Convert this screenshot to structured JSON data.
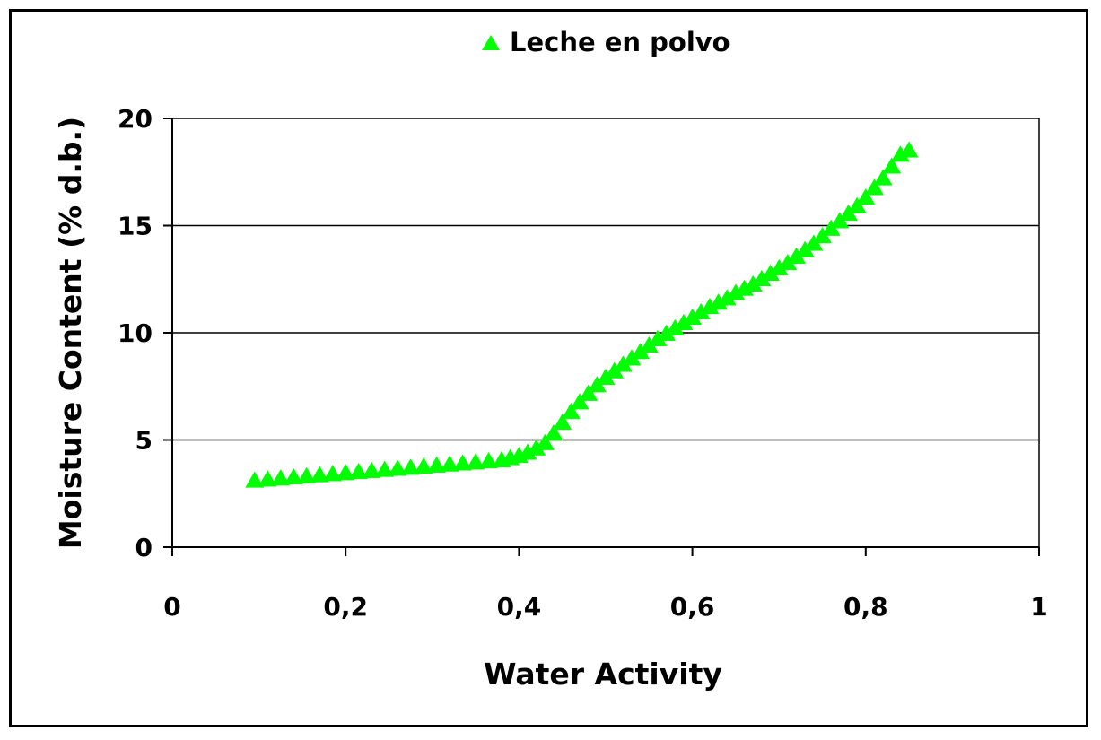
{
  "chart_data": {
    "type": "scatter",
    "xlabel": "Water Activity",
    "ylabel": "Moisture Content (% d.b.)",
    "xlim": [
      0,
      1
    ],
    "ylim": [
      0,
      20
    ],
    "x_ticks": [
      0,
      0.2,
      0.4,
      0.6,
      0.8,
      1
    ],
    "x_tick_labels": [
      "0",
      "0,2",
      "0,4",
      "0,6",
      "0,8",
      "1"
    ],
    "y_ticks": [
      0,
      5,
      10,
      15,
      20
    ],
    "y_tick_labels": [
      "0",
      "5",
      "10",
      "15",
      "20"
    ],
    "grid": {
      "horizontal": true,
      "vertical": false
    },
    "legend_position": "top",
    "series": [
      {
        "name": "Leche en polvo",
        "marker": "triangle",
        "color": "#00ff00",
        "x": [
          0.095,
          0.11,
          0.125,
          0.14,
          0.155,
          0.17,
          0.185,
          0.2,
          0.215,
          0.23,
          0.245,
          0.26,
          0.275,
          0.29,
          0.305,
          0.32,
          0.335,
          0.35,
          0.365,
          0.38,
          0.39,
          0.4,
          0.41,
          0.42,
          0.43,
          0.44,
          0.45,
          0.46,
          0.47,
          0.48,
          0.49,
          0.5,
          0.51,
          0.52,
          0.53,
          0.54,
          0.55,
          0.56,
          0.57,
          0.58,
          0.59,
          0.6,
          0.61,
          0.62,
          0.63,
          0.64,
          0.65,
          0.66,
          0.67,
          0.68,
          0.69,
          0.7,
          0.71,
          0.72,
          0.73,
          0.74,
          0.75,
          0.76,
          0.77,
          0.78,
          0.79,
          0.8,
          0.81,
          0.82,
          0.83,
          0.84,
          0.85
        ],
        "y": [
          3.1,
          3.15,
          3.2,
          3.25,
          3.3,
          3.35,
          3.4,
          3.45,
          3.5,
          3.55,
          3.6,
          3.65,
          3.7,
          3.75,
          3.8,
          3.85,
          3.9,
          3.95,
          4.0,
          4.05,
          4.15,
          4.25,
          4.4,
          4.6,
          4.85,
          5.3,
          5.8,
          6.3,
          6.75,
          7.15,
          7.55,
          7.9,
          8.2,
          8.5,
          8.8,
          9.1,
          9.4,
          9.7,
          9.95,
          10.2,
          10.45,
          10.7,
          10.95,
          11.2,
          11.4,
          11.6,
          11.85,
          12.05,
          12.25,
          12.5,
          12.75,
          13.0,
          13.25,
          13.55,
          13.85,
          14.15,
          14.5,
          14.85,
          15.2,
          15.55,
          15.9,
          16.3,
          16.75,
          17.2,
          17.75,
          18.3,
          18.5
        ]
      }
    ]
  }
}
